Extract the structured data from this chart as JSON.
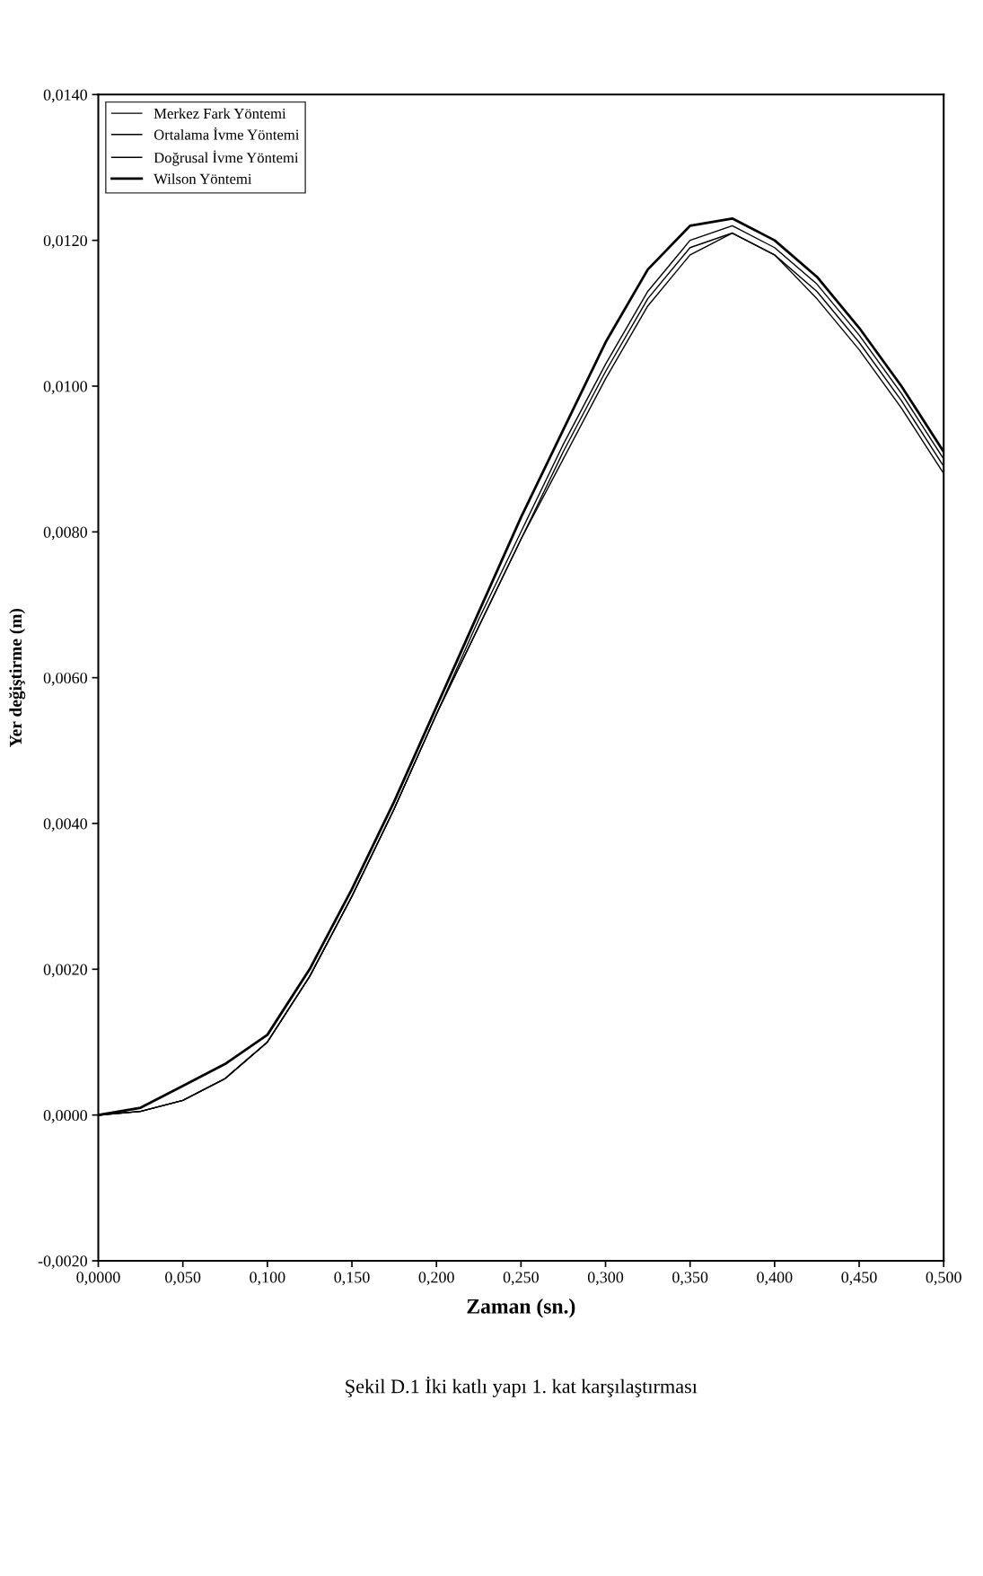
{
  "chart_data": {
    "type": "line",
    "title": "Şekil D.1 İki katlı yapı 1. kat karşılaştırması",
    "xlabel": "Zaman (sn.)",
    "ylabel": "Yer değiştirme (m)",
    "x": [
      0,
      0.025,
      0.05,
      0.075,
      0.1,
      0.125,
      0.15,
      0.175,
      0.2,
      0.225,
      0.25,
      0.275,
      0.3,
      0.325,
      0.35,
      0.375,
      0.4,
      0.425,
      0.45,
      0.475,
      0.5
    ],
    "series": [
      {
        "name": "Merkez Fark Yöntemi",
        "color": "#000000",
        "values": [
          0,
          5e-05,
          0.0002,
          0.0005,
          0.001,
          0.0019,
          0.003,
          0.0042,
          0.0055,
          0.0068,
          0.008,
          0.0092,
          0.0103,
          0.0113,
          0.012,
          0.0122,
          0.0119,
          0.0114,
          0.0107,
          0.0099,
          0.009
        ]
      },
      {
        "name": "Ortalama İvme Yöntemi",
        "color": "#000000",
        "values": [
          0,
          5e-05,
          0.0002,
          0.0005,
          0.001,
          0.0019,
          0.003,
          0.0042,
          0.0055,
          0.0067,
          0.0079,
          0.0091,
          0.0102,
          0.0112,
          0.0119,
          0.0121,
          0.0118,
          0.0113,
          0.0106,
          0.0098,
          0.0089
        ]
      },
      {
        "name": "Doğrusal İvme Yöntemi",
        "color": "#000000",
        "values": [
          0,
          5e-05,
          0.0002,
          0.0005,
          0.001,
          0.0019,
          0.003,
          0.0042,
          0.0055,
          0.0067,
          0.0079,
          0.009,
          0.0101,
          0.0111,
          0.0118,
          0.0121,
          0.0118,
          0.0112,
          0.0105,
          0.0097,
          0.0088
        ]
      },
      {
        "name": "Wilson Yöntemi",
        "color": "#000000",
        "values": [
          0,
          0.0001,
          0.0004,
          0.0007,
          0.0011,
          0.002,
          0.0031,
          0.0043,
          0.0056,
          0.0069,
          0.0082,
          0.0094,
          0.0106,
          0.0116,
          0.0122,
          0.0123,
          0.012,
          0.0115,
          0.0108,
          0.01,
          0.0091
        ]
      }
    ],
    "xlim": [
      0,
      0.5
    ],
    "xticks": [
      {
        "value": 0,
        "label": "0,0000"
      },
      {
        "value": 0.05,
        "label": "0,050"
      },
      {
        "value": 0.1,
        "label": "0,100"
      },
      {
        "value": 0.15,
        "label": "0,150"
      },
      {
        "value": 0.2,
        "label": "0,200"
      },
      {
        "value": 0.25,
        "label": "0,250"
      },
      {
        "value": 0.3,
        "label": "0,300"
      },
      {
        "value": 0.35,
        "label": "0,350"
      },
      {
        "value": 0.4,
        "label": "0,400"
      },
      {
        "value": 0.45,
        "label": "0,450"
      },
      {
        "value": 0.5,
        "label": "0,500"
      }
    ],
    "ylim": [
      -0.002,
      0.014
    ],
    "yticks": [
      {
        "value": -0.002,
        "label": "-0,0020"
      },
      {
        "value": 0,
        "label": "0,0000"
      },
      {
        "value": 0.002,
        "label": "0,0020"
      },
      {
        "value": 0.004,
        "label": "0,0040"
      },
      {
        "value": 0.006,
        "label": "0,0060"
      },
      {
        "value": 0.008,
        "label": "0,0080"
      },
      {
        "value": 0.01,
        "label": "0,0100"
      },
      {
        "value": 0.012,
        "label": "0,0120"
      },
      {
        "value": 0.014,
        "label": "0,0140"
      }
    ],
    "legend": "top left",
    "grid": false,
    "marker": "none",
    "line_style": "solid"
  }
}
